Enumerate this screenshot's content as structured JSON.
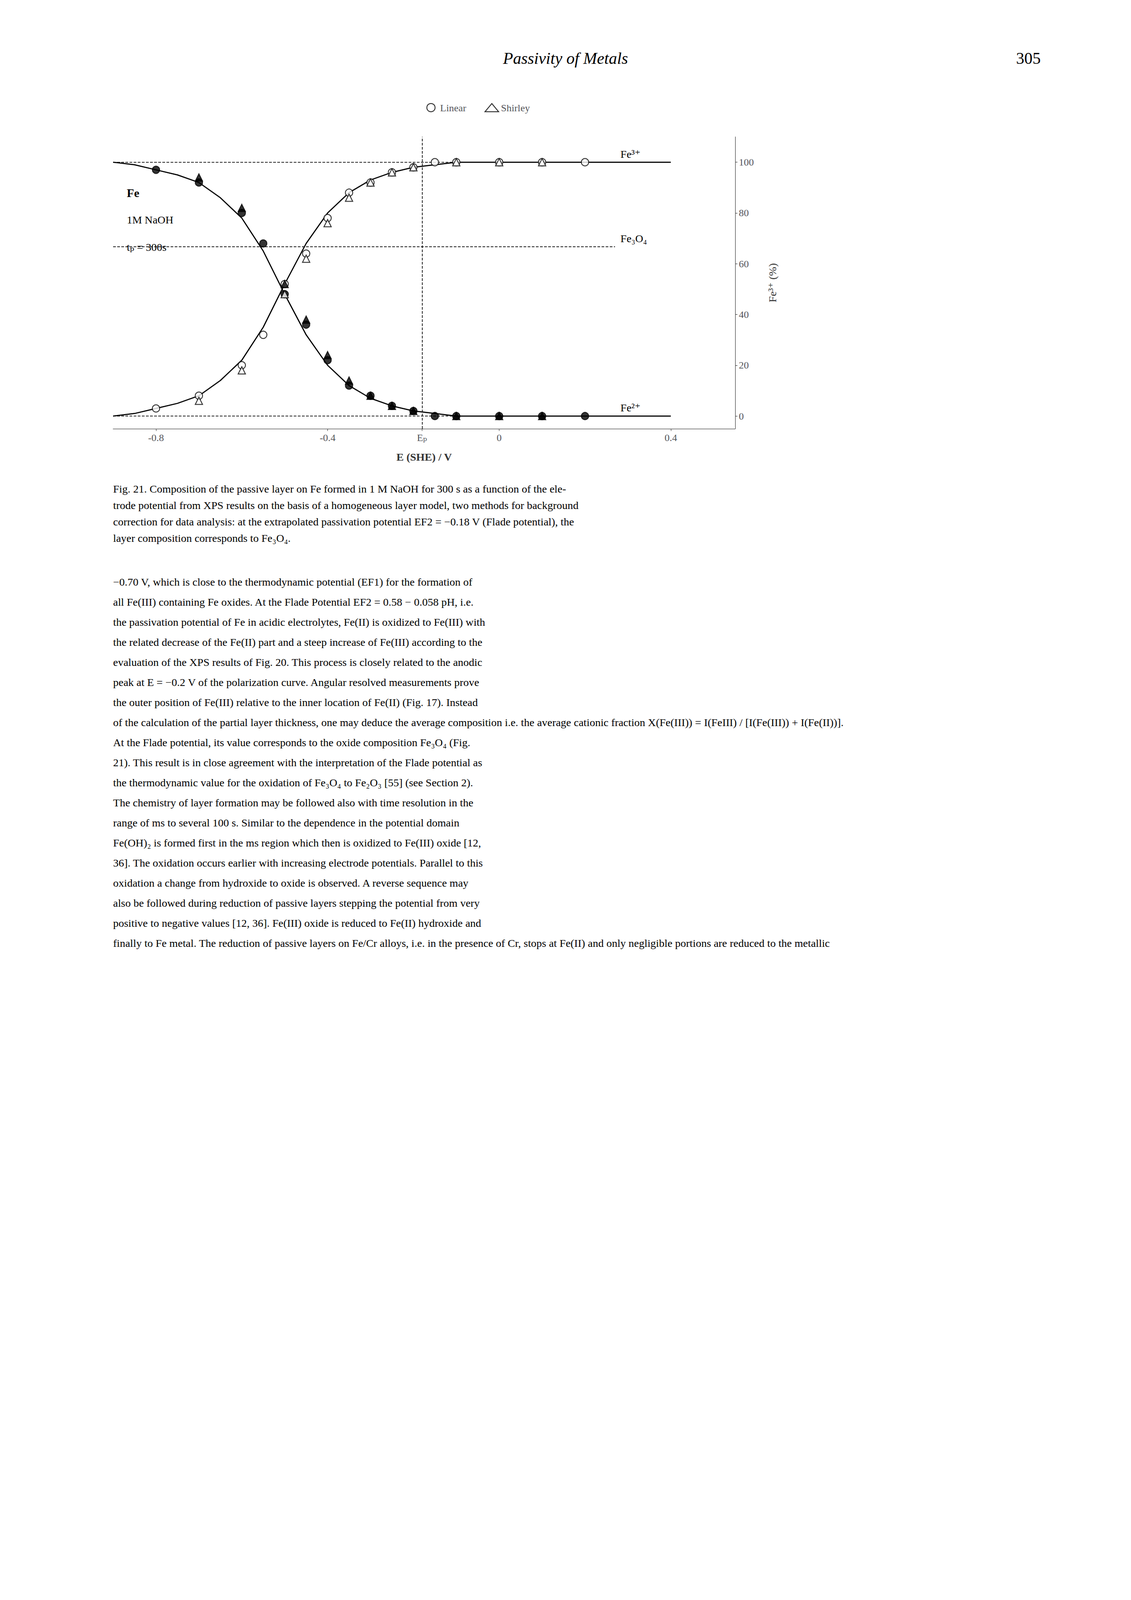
{
  "header_text": "Passivity of Metals",
  "page_number": "305",
  "caption_lines": [
    "Fig. 21. Composition of the passive layer on Fe formed in 1 M NaOH for 300 s as a function of the ele-",
    "trode potential from XPS results on the basis of a homogeneous layer model, two methods for background",
    "correction for data analysis: at the extrapolated passivation potential EF2 = −0.18 V (Flade potential), the",
    "layer composition corresponds to Fe₃O₄."
  ],
  "body_text_lines": [
    "−0.70 V, which is close to the thermodynamic potential (EF1) for the formation of",
    "all Fe(III) containing Fe oxides. At the Flade Potential EF2 = 0.58 − 0.058 pH, i.e.",
    "the passivation potential of Fe in acidic electrolytes, Fe(II) is oxidized to Fe(III) with",
    "the related decrease of the Fe(II) part and a steep increase of Fe(III) according to the",
    "evaluation of the XPS results of Fig. 20. This process is closely related to the anodic",
    "peak at E = −0.2 V of the polarization curve. Angular resolved measurements prove",
    "the outer position of Fe(III) relative to the inner location of Fe(II) (Fig. 17). Instead",
    "of the calculation of the partial layer thickness, one may deduce the average composition i.e. the average cationic fraction X(Fe(III)) = I(FeIII) / [I(Fe(III)) + I(Fe(II))].",
    "At the Flade potential, its value corresponds to the oxide composition Fe₃O₄ (Fig.",
    "21). This result is in close agreement with the interpretation of the Flade potential as",
    "the thermodynamic value for the oxidation of Fe₃O₄ to Fe₂O₃ [55] (see Section 2).",
    "The chemistry of layer formation may be followed also with time resolution in the",
    "range of ms to several 100 s. Similar to the dependence in the potential domain",
    "Fe(OH)₂ is formed first in the ms region which then is oxidized to Fe(III) oxide [12,",
    "36]. The oxidation occurs earlier with increasing electrode potentials. Parallel to this",
    "oxidation a change from hydroxide to oxide is observed. A reverse sequence may",
    "also be followed during reduction of passive layers stepping the potential from very",
    "positive to negative values [12, 36]. Fe(III) oxide is reduced to Fe(II) hydroxide and",
    "finally to Fe metal. The reduction of passive layers on Fe/Cr alloys, i.e. in the presence of Cr, stops at Fe(II) and only negligible portions are reduced to the metallic"
  ],
  "chart_data": {
    "type": "line",
    "xlabel": "E (SHE) / V",
    "ylabel": "Fe³⁺ (%)",
    "plot_label_text": [
      "Fe",
      "1M NaOH",
      "tₚ = 300s"
    ],
    "xlim": [
      -0.9,
      0.55
    ],
    "ylim": [
      -5,
      110
    ],
    "xticks": [
      -0.8,
      -0.4,
      {
        "value": -0.18,
        "label": "Eₚ"
      },
      0,
      0.4
    ],
    "yticks": [
      0,
      20,
      40,
      60,
      80,
      100
    ],
    "grid": false,
    "legend": "top",
    "series": [
      {
        "type": "line",
        "color": "#000000",
        "line_style": "solid",
        "x": [
          -0.9,
          -0.85,
          -0.8,
          -0.75,
          -0.7,
          -0.65,
          -0.6,
          -0.55,
          -0.5,
          -0.45,
          -0.4,
          -0.35,
          -0.3,
          -0.25,
          -0.2,
          -0.15,
          -0.1,
          -0.05,
          0.0,
          0.05,
          0.1,
          0.15,
          0.2,
          0.25,
          0.3,
          0.35,
          0.4
        ],
        "values": [
          0,
          1,
          3,
          5,
          8,
          14,
          22,
          35,
          52,
          68,
          80,
          88,
          93,
          96,
          98,
          99,
          100,
          100,
          100,
          100,
          100,
          100,
          100,
          100,
          100,
          100,
          100
        ]
      },
      {
        "type": "line",
        "color": "#000000",
        "line_style": "solid",
        "x": [
          -0.9,
          -0.85,
          -0.8,
          -0.75,
          -0.7,
          -0.65,
          -0.6,
          -0.55,
          -0.5,
          -0.45,
          -0.4,
          -0.35,
          -0.3,
          -0.25,
          -0.2,
          -0.15,
          -0.1,
          -0.05,
          0.0,
          0.05,
          0.1,
          0.15,
          0.2,
          0.25,
          0.3,
          0.35,
          0.4
        ],
        "values": [
          100,
          99,
          97,
          95,
          92,
          86,
          78,
          65,
          48,
          32,
          20,
          12,
          7,
          4,
          2,
          1,
          0,
          0,
          0,
          0,
          0,
          0,
          0,
          0,
          0,
          0,
          0
        ]
      },
      {
        "type": "scatter",
        "name": "Linear",
        "marker": "circle-open",
        "color": "#000000",
        "x": [
          -0.8,
          -0.7,
          -0.6,
          -0.55,
          -0.5,
          -0.45,
          -0.4,
          -0.35,
          -0.3,
          -0.25,
          -0.2,
          -0.15,
          -0.1,
          0.0,
          0.1,
          0.2
        ],
        "values": [
          3,
          8,
          20,
          32,
          52,
          64,
          78,
          88,
          92,
          96,
          98,
          100,
          100,
          100,
          100,
          100
        ]
      },
      {
        "type": "scatter",
        "name": "Linear",
        "marker": "circle",
        "color": "#000000",
        "x": [
          -0.8,
          -0.7,
          -0.6,
          -0.55,
          -0.5,
          -0.45,
          -0.4,
          -0.35,
          -0.3,
          -0.25,
          -0.2,
          -0.15,
          -0.1,
          0.0,
          0.1,
          0.2
        ],
        "values": [
          97,
          92,
          80,
          68,
          48,
          36,
          22,
          12,
          8,
          4,
          2,
          0,
          0,
          0,
          0,
          0
        ]
      },
      {
        "type": "scatter",
        "name": "Shirley",
        "marker": "triangle-open",
        "color": "#000000",
        "x": [
          -0.7,
          -0.6,
          -0.5,
          -0.45,
          -0.4,
          -0.35,
          -0.3,
          -0.25,
          -0.2,
          -0.1,
          0.0,
          0.1
        ],
        "values": [
          6,
          18,
          48,
          62,
          76,
          86,
          92,
          96,
          98,
          100,
          100,
          100
        ]
      },
      {
        "type": "scatter",
        "name": "Shirley",
        "marker": "triangle",
        "color": "#000000",
        "x": [
          -0.7,
          -0.6,
          -0.5,
          -0.45,
          -0.4,
          -0.35,
          -0.3,
          -0.25,
          -0.2,
          -0.1,
          0.0,
          0.1
        ],
        "values": [
          94,
          82,
          52,
          38,
          24,
          14,
          8,
          4,
          2,
          0,
          0,
          0
        ]
      }
    ],
    "hlines": [
      {
        "y": 100,
        "x": [
          -0.9,
          0.27
        ],
        "line_style": "dashed",
        "color": "#000000",
        "label": "Fe³⁺"
      },
      {
        "y": 66.7,
        "x": [
          -0.9,
          0.27
        ],
        "line_style": "dashed",
        "color": "#000000",
        "label": "Fe₃O₄"
      },
      {
        "y": 0,
        "x": [
          -0.9,
          0.27
        ],
        "line_style": "dashed",
        "color": "#000000",
        "label": "Fe²⁺"
      }
    ],
    "vline": {
      "x": -0.18,
      "line_style": "dashed",
      "color": "#000000"
    }
  }
}
